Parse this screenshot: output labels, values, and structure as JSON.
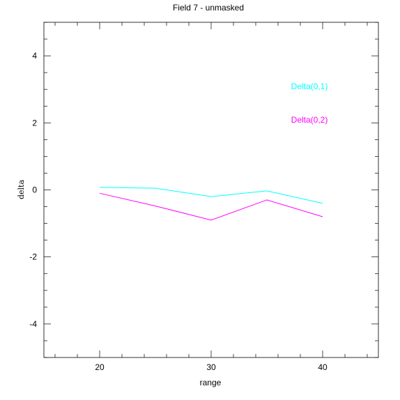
{
  "chart_data": {
    "type": "line",
    "title": "Field 7 - unmasked",
    "xlabel": "range",
    "ylabel": "delta",
    "xlim": [
      15,
      45
    ],
    "ylim": [
      -5,
      5
    ],
    "xticks": [
      20,
      30,
      40
    ],
    "yticks": [
      -4,
      -2,
      0,
      2,
      4
    ],
    "grid": false,
    "legend_position": "top-right",
    "x": [
      20,
      25,
      30,
      35,
      40
    ],
    "series": [
      {
        "name": "Delta(0,1)",
        "color": "#00ffff",
        "values": [
          0.08,
          0.05,
          -0.2,
          -0.03,
          -0.4
        ]
      },
      {
        "name": "Delta(0,2)",
        "color": "#ff00ff",
        "values": [
          -0.1,
          -0.48,
          -0.9,
          -0.3,
          -0.8
        ]
      }
    ]
  }
}
